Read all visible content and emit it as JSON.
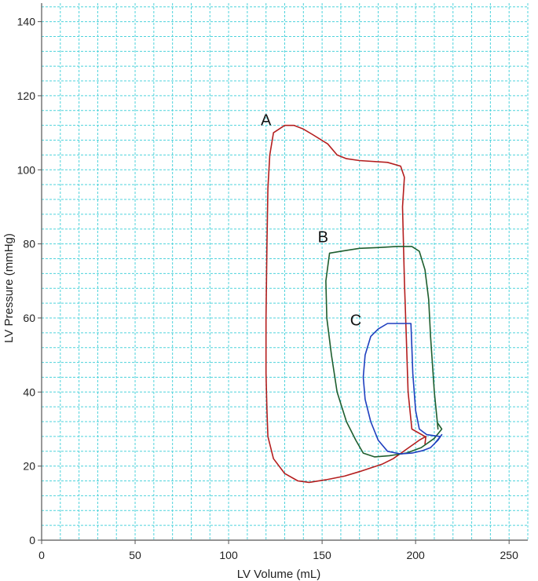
{
  "chart_data": {
    "type": "line",
    "xlabel": "LV Volume (mL)",
    "ylabel": "LV Pressure (mmHg)",
    "xlim": [
      0,
      260
    ],
    "ylim": [
      0,
      145
    ],
    "xticks": [
      0,
      50,
      100,
      150,
      200,
      250
    ],
    "yticks": [
      0,
      20,
      40,
      60,
      80,
      100,
      120,
      140
    ],
    "x_minor_step": 10,
    "y_minor_step": 4,
    "grid": true,
    "grid_color": "#4fd3dc",
    "axis_color": "#555555",
    "series": [
      {
        "name": "A",
        "color": "#b41e1e",
        "points": [
          [
            205,
            28
          ],
          [
            198,
            30
          ],
          [
            196,
            40
          ],
          [
            195,
            55
          ],
          [
            194,
            70
          ],
          [
            193,
            90
          ],
          [
            194,
            98
          ],
          [
            192,
            101
          ],
          [
            185,
            102
          ],
          [
            170,
            102.5
          ],
          [
            163,
            103
          ],
          [
            158,
            104
          ],
          [
            153,
            107
          ],
          [
            145,
            109.5
          ],
          [
            140,
            111
          ],
          [
            135,
            112
          ],
          [
            130,
            112
          ],
          [
            124,
            110
          ],
          [
            122,
            104
          ],
          [
            121,
            95
          ],
          [
            120.5,
            80
          ],
          [
            120,
            60
          ],
          [
            120,
            45
          ],
          [
            120.5,
            35
          ],
          [
            121,
            28
          ],
          [
            124,
            22
          ],
          [
            130,
            18
          ],
          [
            137,
            16
          ],
          [
            143,
            15.6
          ],
          [
            152,
            16.3
          ],
          [
            162,
            17.3
          ],
          [
            170,
            18.5
          ],
          [
            176,
            19.5
          ],
          [
            182,
            20.5
          ],
          [
            188,
            22
          ],
          [
            195,
            24.5
          ],
          [
            202,
            27
          ],
          [
            205.5,
            28
          ],
          [
            205,
            26
          ]
        ]
      },
      {
        "name": "B",
        "color": "#1e5e2e",
        "points": [
          [
            212,
            30
          ],
          [
            210,
            40
          ],
          [
            208,
            55
          ],
          [
            207,
            65
          ],
          [
            205,
            73
          ],
          [
            202,
            78
          ],
          [
            198,
            79.3
          ],
          [
            190,
            79.3
          ],
          [
            180,
            79
          ],
          [
            170,
            78.8
          ],
          [
            160,
            78
          ],
          [
            154,
            77.5
          ],
          [
            152,
            70
          ],
          [
            152.5,
            60
          ],
          [
            155,
            50
          ],
          [
            158,
            40
          ],
          [
            163,
            32
          ],
          [
            168,
            27
          ],
          [
            172,
            23.5
          ],
          [
            178,
            22.5
          ],
          [
            186,
            22.8
          ],
          [
            195,
            23.5
          ],
          [
            203,
            25
          ],
          [
            210,
            27.5
          ],
          [
            214,
            30
          ],
          [
            212,
            31.5
          ]
        ]
      },
      {
        "name": "C",
        "color": "#1f3fbf",
        "points": [
          [
            213,
            28
          ],
          [
            206,
            28.5
          ],
          [
            202,
            30
          ],
          [
            200,
            35
          ],
          [
            198.5,
            45
          ],
          [
            198,
            52
          ],
          [
            197.5,
            58.5
          ],
          [
            192,
            58.5
          ],
          [
            185,
            58.5
          ],
          [
            180,
            57
          ],
          [
            176,
            55
          ],
          [
            173,
            50
          ],
          [
            172,
            44
          ],
          [
            173,
            38
          ],
          [
            176,
            32
          ],
          [
            180,
            27
          ],
          [
            185,
            24
          ],
          [
            192,
            23.3
          ],
          [
            198,
            23.5
          ],
          [
            204,
            24.2
          ],
          [
            208,
            25
          ],
          [
            212,
            27
          ],
          [
            214,
            28.5
          ],
          [
            210,
            26
          ]
        ]
      }
    ],
    "annotations": [
      {
        "text": "A",
        "x": 120,
        "y": 112
      },
      {
        "text": "B",
        "x": 150.5,
        "y": 80.5
      },
      {
        "text": "C",
        "x": 168,
        "y": 58
      }
    ]
  }
}
